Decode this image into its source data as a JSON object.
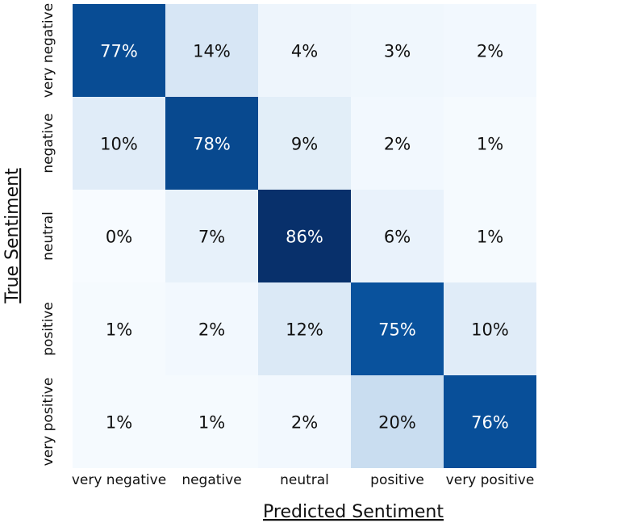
{
  "chart_data": {
    "type": "heatmap",
    "title": "",
    "xlabel": "Predicted Sentiment",
    "ylabel": "True Sentiment",
    "x_categories": [
      "very negative",
      "negative",
      "neutral",
      "positive",
      "very positive"
    ],
    "y_categories": [
      "very negative",
      "negative",
      "neutral",
      "positive",
      "very positive"
    ],
    "values": [
      [
        77,
        14,
        4,
        3,
        2
      ],
      [
        10,
        78,
        9,
        2,
        1
      ],
      [
        0,
        7,
        86,
        6,
        1
      ],
      [
        1,
        2,
        12,
        75,
        10
      ],
      [
        1,
        1,
        2,
        20,
        76
      ]
    ],
    "value_suffix": "%",
    "colormap": "Blues",
    "color_low": "#f7fbff",
    "color_high": "#08306b"
  }
}
